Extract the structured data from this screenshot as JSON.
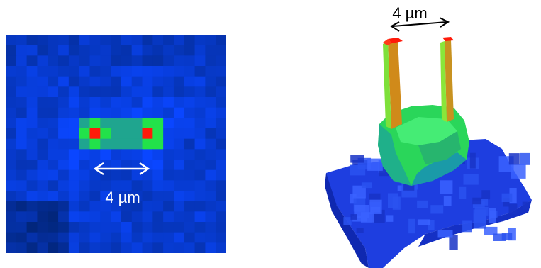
{
  "left_panel": {
    "scale_label": "4 µm",
    "colors": {
      "background": "#0a1f8c",
      "low": "#1135c8",
      "mid_green": "#22e24a",
      "teal": "#1fa58f",
      "peak": "#ff1a0a"
    }
  },
  "right_panel": {
    "scale_label": "4 µm",
    "colors": {
      "base": "#1e3ee0",
      "green": "#3cf05a",
      "orange": "#d28a1a",
      "peak": "#ff1a0a"
    }
  }
}
